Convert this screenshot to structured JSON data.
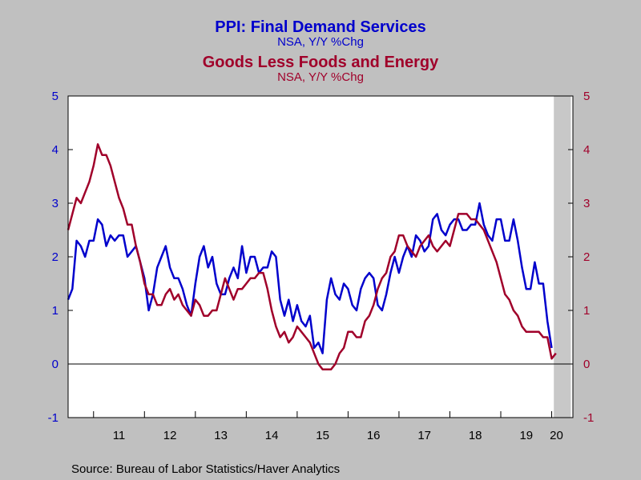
{
  "chart_data": {
    "type": "line",
    "titles": [
      {
        "title": "PPI: Final Demand Services",
        "subtitle": "NSA, Y/Y %Chg",
        "color": "#0000CC"
      },
      {
        "title": "Goods Less Foods and Energy",
        "subtitle": "NSA, Y/Y %Chg",
        "color": "#A0002A"
      }
    ],
    "x_ticks": [
      "11",
      "12",
      "13",
      "14",
      "15",
      "16",
      "17",
      "18",
      "19",
      "20"
    ],
    "ylim": [
      -1,
      5
    ],
    "y_ticks_left": [
      "5",
      "4",
      "3",
      "2",
      "1",
      "0",
      "-1"
    ],
    "y_ticks_right": [
      "5",
      "4",
      "3",
      "2",
      "1",
      "0",
      "-1"
    ],
    "x_start": "2010-07",
    "shaded_region": {
      "from": "2020-02",
      "to": "2020-05"
    },
    "series": [
      {
        "color": "#0000CC",
        "axis": "left",
        "values": [
          1.2,
          1.4,
          2.3,
          2.2,
          2.0,
          2.3,
          2.3,
          2.7,
          2.6,
          2.2,
          2.4,
          2.3,
          2.4,
          2.4,
          2.0,
          2.1,
          2.2,
          1.9,
          1.6,
          1.0,
          1.3,
          1.8,
          2.0,
          2.2,
          1.8,
          1.6,
          1.6,
          1.4,
          1.1,
          0.9,
          1.5,
          2.0,
          2.2,
          1.8,
          2.0,
          1.5,
          1.3,
          1.3,
          1.6,
          1.8,
          1.6,
          2.2,
          1.7,
          2.0,
          2.0,
          1.7,
          1.8,
          1.8,
          2.1,
          2.0,
          1.2,
          0.9,
          1.2,
          0.8,
          1.1,
          0.8,
          0.7,
          0.9,
          0.3,
          0.4,
          0.2,
          1.2,
          1.6,
          1.3,
          1.2,
          1.5,
          1.4,
          1.1,
          1.0,
          1.4,
          1.6,
          1.7,
          1.6,
          1.1,
          1.0,
          1.3,
          1.7,
          2.0,
          1.7,
          2.0,
          2.2,
          2.0,
          2.4,
          2.3,
          2.1,
          2.2,
          2.7,
          2.8,
          2.5,
          2.4,
          2.6,
          2.7,
          2.7,
          2.5,
          2.5,
          2.6,
          2.6,
          3.0,
          2.6,
          2.4,
          2.3,
          2.7,
          2.7,
          2.3,
          2.3,
          2.7,
          2.3,
          1.8,
          1.4,
          1.4,
          1.9,
          1.5,
          1.5,
          0.8,
          0.3
        ]
      },
      {
        "color": "#A0002A",
        "axis": "right",
        "values": [
          2.5,
          2.8,
          3.1,
          3.0,
          3.2,
          3.4,
          3.7,
          4.1,
          3.9,
          3.9,
          3.7,
          3.4,
          3.1,
          2.9,
          2.6,
          2.6,
          2.2,
          1.9,
          1.5,
          1.3,
          1.3,
          1.1,
          1.1,
          1.3,
          1.4,
          1.2,
          1.3,
          1.1,
          1.0,
          0.9,
          1.2,
          1.1,
          0.9,
          0.9,
          1.0,
          1.0,
          1.3,
          1.6,
          1.4,
          1.2,
          1.4,
          1.4,
          1.5,
          1.6,
          1.6,
          1.7,
          1.7,
          1.4,
          1.0,
          0.7,
          0.5,
          0.6,
          0.4,
          0.5,
          0.7,
          0.6,
          0.5,
          0.4,
          0.2,
          0.0,
          -0.1,
          -0.1,
          -0.1,
          0.0,
          0.2,
          0.3,
          0.6,
          0.6,
          0.5,
          0.5,
          0.8,
          0.9,
          1.1,
          1.4,
          1.6,
          1.7,
          2.0,
          2.1,
          2.4,
          2.4,
          2.2,
          2.1,
          2.0,
          2.2,
          2.3,
          2.4,
          2.2,
          2.1,
          2.2,
          2.3,
          2.2,
          2.5,
          2.8,
          2.8,
          2.8,
          2.7,
          2.7,
          2.6,
          2.5,
          2.3,
          2.1,
          1.9,
          1.6,
          1.3,
          1.2,
          1.0,
          0.9,
          0.7,
          0.6,
          0.6,
          0.6,
          0.6,
          0.5,
          0.5,
          0.1,
          0.2
        ]
      }
    ],
    "grid": false,
    "zero_line": true
  },
  "source": "Source:  Bureau of Labor Statistics/Haver Analytics"
}
